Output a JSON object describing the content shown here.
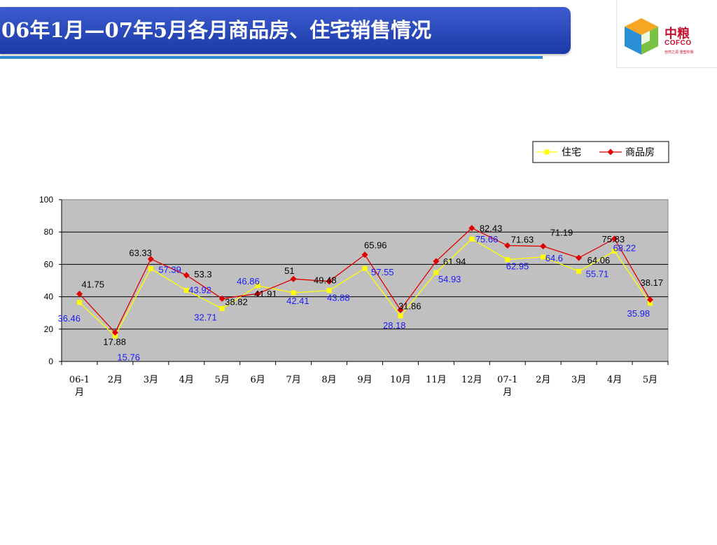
{
  "slide": {
    "title": "06年1月—07年5月各月商品房、住宅销售情况",
    "logo_cn": "中粮",
    "logo_en": "COFCO",
    "logo_tagline": "自然之源 重塑你我"
  },
  "colors": {
    "residential": "#ffff00",
    "commercial": "#e00000",
    "plot_bg": "#c0c0c0",
    "label_blue": "#1a1aff"
  },
  "chart_data": {
    "type": "line",
    "title": "",
    "xlabel": "",
    "ylabel": "",
    "ylim": [
      0,
      100
    ],
    "yticks": [
      0,
      20,
      40,
      60,
      80,
      100
    ],
    "grid": true,
    "legend_position": "top-right",
    "categories": [
      "06-1月",
      "2月",
      "3月",
      "4月",
      "5月",
      "6月",
      "7月",
      "8月",
      "9月",
      "10月",
      "11月",
      "12月",
      "07-1月",
      "2月",
      "3月",
      "4月",
      "5月"
    ],
    "series": [
      {
        "name": "住宅",
        "marker": "square",
        "color": "#ffff00",
        "values": [
          36.46,
          15.76,
          57.39,
          43.92,
          32.71,
          46.86,
          42.41,
          43.88,
          57.55,
          28.18,
          54.93,
          75.66,
          62.95,
          64.6,
          55.71,
          68.22,
          35.98
        ]
      },
      {
        "name": "商品房",
        "marker": "diamond",
        "color": "#e00000",
        "values": [
          41.75,
          17.88,
          63.33,
          53.3,
          38.82,
          41.91,
          51,
          49.48,
          65.96,
          31.86,
          61.94,
          82.43,
          71.63,
          71.19,
          64.06,
          75.83,
          38.17
        ]
      }
    ],
    "labels": {
      "residential": [
        "36.46",
        "15.76",
        "57.39",
        "43.92",
        "32.71",
        "46.86",
        "42.41",
        "43.88",
        "57.55",
        "28.18",
        "54.93",
        "75.66",
        "62.95",
        "64.6",
        "55.71",
        "68.22",
        "35.98"
      ],
      "commercial": [
        "41.75",
        "17.88",
        "63.33",
        "53.3",
        "38.82",
        "41.91",
        "51",
        "49.48",
        "65.96",
        "31.86",
        "61.94",
        "82.43",
        "71.63",
        "71.19",
        "64.06",
        "75.83",
        "38.17"
      ]
    }
  }
}
